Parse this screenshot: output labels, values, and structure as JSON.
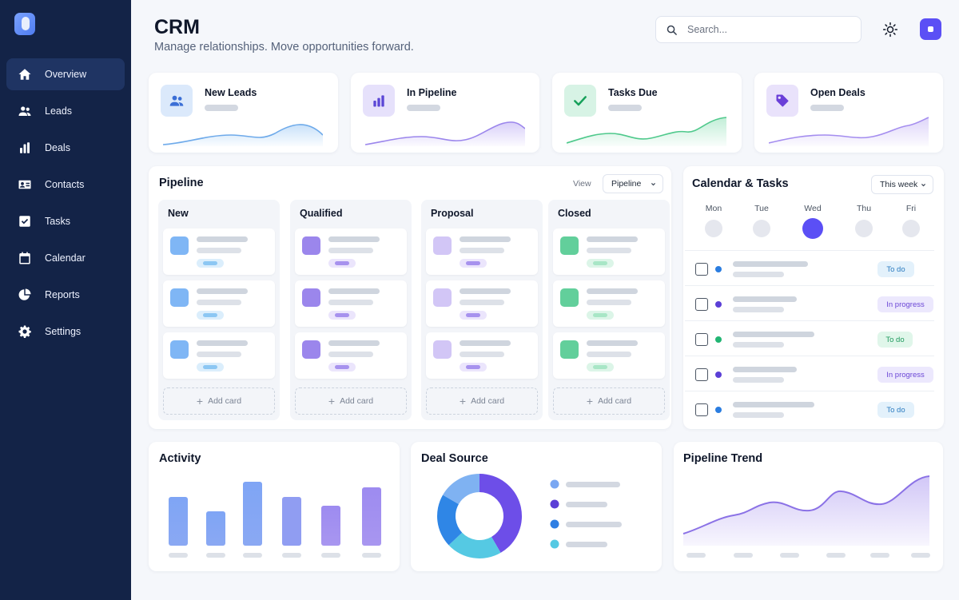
{
  "app": {
    "title": "CRM",
    "subtitle": "Manage relationships. Move opportunities forward."
  },
  "search": {
    "placeholder": "Search..."
  },
  "icons": {
    "search": "search-icon",
    "theme": "sun-icon",
    "user": "avatar-icon"
  },
  "colors": {
    "sidebar": "#132347",
    "accent": "#5b4ff5",
    "blue": "#3b82f6",
    "purple": "#7c5cf0",
    "green": "#22c55e",
    "cyan": "#4cc9e6"
  },
  "sidebar": {
    "items": [
      {
        "label": "Overview",
        "icon": "home-icon",
        "active": true
      },
      {
        "label": "Leads",
        "icon": "users-icon"
      },
      {
        "label": "Deals",
        "icon": "bar-chart-icon"
      },
      {
        "label": "Contacts",
        "icon": "id-card-icon"
      },
      {
        "label": "Tasks",
        "icon": "checkbox-icon"
      },
      {
        "label": "Calendar",
        "icon": "calendar-icon"
      },
      {
        "label": "Reports",
        "icon": "pie-chart-icon"
      },
      {
        "label": "Settings",
        "icon": "gear-icon"
      }
    ]
  },
  "kpis": [
    {
      "label": "New Leads",
      "icon": "users-icon"
    },
    {
      "label": "In Pipeline",
      "icon": "bar-chart-icon"
    },
    {
      "label": "Tasks Due",
      "icon": "check-icon"
    },
    {
      "label": "Open Deals",
      "icon": "tag-icon"
    }
  ],
  "pipeline": {
    "title": "Pipeline",
    "view_label": "View",
    "view_value": "Pipeline",
    "columns": [
      {
        "label": "New",
        "add": "Add card"
      },
      {
        "label": "Qualified",
        "add": "Add card"
      },
      {
        "label": "Proposal",
        "add": "Add card"
      },
      {
        "label": "Closed",
        "add": "Add card"
      }
    ]
  },
  "calendar": {
    "title": "Calendar & Tasks",
    "range": "This week",
    "days": [
      "Mon",
      "Tue",
      "Wed",
      "Thu",
      "Fri"
    ],
    "selected_day": "Wed",
    "tasks": [
      {
        "status": "To do"
      },
      {
        "status": "In progress"
      },
      {
        "status": "To do"
      },
      {
        "status": "In progress"
      },
      {
        "status": "To do"
      }
    ]
  },
  "activity": {
    "title": "Activity"
  },
  "deal_source": {
    "title": "Deal Source"
  },
  "pipeline_trend": {
    "title": "Pipeline Trend"
  }
}
